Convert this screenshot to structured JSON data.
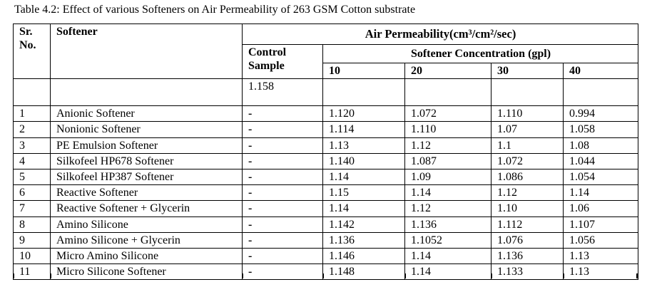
{
  "title": "Table 4.2: Effect of various Softeners on Air Permeability of 263 GSM Cotton substrate",
  "table": {
    "headers": {
      "sr_no": "Sr. No.",
      "softener": "Softener",
      "air_permeability": "Air Permeability(cm³/cm²/sec)",
      "control_sample": "Control Sample",
      "softener_concentration": "Softener Concentration (gpl)",
      "concentrations": [
        "10",
        "20",
        "30",
        "40"
      ]
    },
    "control_value": "1.158",
    "rows": [
      {
        "sr": "1",
        "softener": "Anionic Softener",
        "control": "-",
        "values": [
          "1.120",
          "1.072",
          "1.110",
          "0.994"
        ]
      },
      {
        "sr": "2",
        "softener": "Nonionic Softener",
        "control": "-",
        "values": [
          "1.114",
          "1.110",
          "1.07",
          "1.058"
        ]
      },
      {
        "sr": "3",
        "softener": "PE Emulsion Softener",
        "control": "-",
        "values": [
          "1.13",
          "1.12",
          "1.1",
          "1.08"
        ]
      },
      {
        "sr": "4",
        "softener": "Silkofeel HP678 Softener",
        "control": "-",
        "values": [
          "1.140",
          "1.087",
          "1.072",
          "1.044"
        ]
      },
      {
        "sr": "5",
        "softener": "Silkofeel HP387 Softener",
        "control": "-",
        "values": [
          "1.14",
          "1.09",
          "1.086",
          "1.054"
        ]
      },
      {
        "sr": "6",
        "softener": "Reactive Softener",
        "control": "-",
        "values": [
          "1.15",
          "1.14",
          "1.12",
          "1.14"
        ]
      },
      {
        "sr": "7",
        "softener": "Reactive Softener + Glycerin",
        "control": "-",
        "values": [
          "1.14",
          "1.12",
          "1.10",
          "1.06"
        ]
      },
      {
        "sr": "8",
        "softener": "Amino Silicone",
        "control": "-",
        "values": [
          "1.142",
          "1.136",
          "1.112",
          "1.107"
        ]
      },
      {
        "sr": "9",
        "softener": "Amino Silicone + Glycerin",
        "control": "-",
        "values": [
          "1.136",
          "1.1052",
          "1.076",
          "1.056"
        ]
      },
      {
        "sr": "10",
        "softener": "Micro Amino Silicone",
        "control": "-",
        "values": [
          "1.146",
          "1.14",
          "1.136",
          "1.13"
        ]
      },
      {
        "sr": "11",
        "softener": "Micro Silicone Softener",
        "control": "-",
        "values": [
          "1.148",
          "1.14",
          "1.133",
          "1.13"
        ]
      }
    ]
  }
}
